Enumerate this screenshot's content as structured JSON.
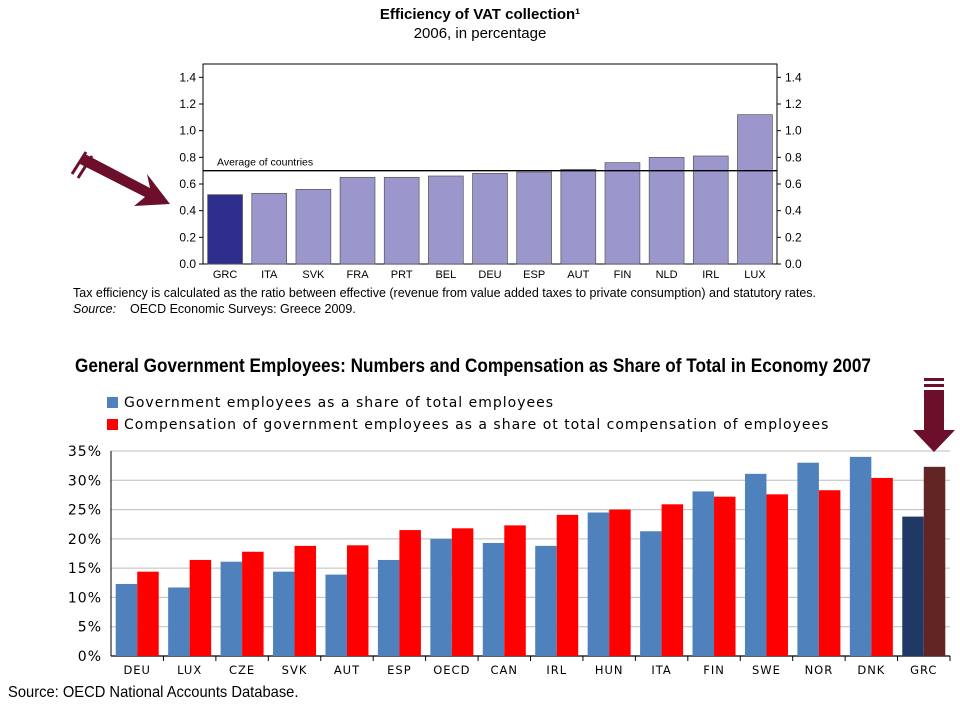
{
  "chart_data": [
    {
      "type": "bar",
      "title": "Efficiency of VAT collection¹",
      "subtitle": "2006, in percentage",
      "categories": [
        "GRC",
        "ITA",
        "SVK",
        "FRA",
        "PRT",
        "BEL",
        "DEU",
        "ESP",
        "AUT",
        "FIN",
        "NLD",
        "IRL",
        "LUX"
      ],
      "values": [
        0.52,
        0.53,
        0.56,
        0.65,
        0.65,
        0.66,
        0.68,
        0.69,
        0.71,
        0.76,
        0.8,
        0.81,
        1.12
      ],
      "highlight_index": 0,
      "reference_line": {
        "label": "Average of countries",
        "value": 0.7
      },
      "yticks": [
        "0.0",
        "0.2",
        "0.4",
        "0.6",
        "0.8",
        "1.0",
        "1.2",
        "1.4"
      ],
      "ylim": [
        0,
        1.5
      ],
      "grid": false,
      "colors": {
        "bar": "#9b97cc",
        "highlight": "#2e2e8f"
      }
    },
    {
      "type": "bar",
      "title": "General Government Employees: Numbers and Compensation as Share of Total in Economy 2007",
      "categories": [
        "DEU",
        "LUX",
        "CZE",
        "SVK",
        "AUT",
        "ESP",
        "OECD",
        "CAN",
        "IRL",
        "HUN",
        "ITA",
        "FIN",
        "SWE",
        "NOR",
        "DNK",
        "GRC"
      ],
      "series": [
        {
          "name": "Government employees as a share of total employees",
          "values": [
            12.3,
            11.7,
            16.1,
            14.4,
            13.9,
            16.4,
            20.0,
            19.3,
            18.8,
            24.5,
            21.3,
            28.1,
            31.1,
            33.0,
            34.0,
            23.8
          ],
          "color": "#4f81bd",
          "highlight_color": "#1f3864"
        },
        {
          "name": "Compensation of government employees as a share ot total compensation of employees",
          "values": [
            14.4,
            16.4,
            17.8,
            18.8,
            18.9,
            21.5,
            21.8,
            22.3,
            24.1,
            25.0,
            25.9,
            27.2,
            27.6,
            28.3,
            30.4,
            32.3
          ],
          "color": "#ff0000",
          "highlight_color": "#632523"
        }
      ],
      "highlight_category": "GRC",
      "yticks": [
        "0%",
        "5%",
        "10%",
        "15%",
        "20%",
        "25%",
        "30%",
        "35%"
      ],
      "ylim": [
        0,
        35
      ],
      "grid": true
    }
  ],
  "notes": {
    "footnote": "Tax efficiency is calculated as the ratio between effective (revenue from value added taxes to private consumption) and statutory rates.",
    "source_label": "Source:",
    "source_text": "OECD Economic Surveys: Greece 2009.",
    "bottom_source": "Source: OECD National Accounts Database."
  },
  "annotations": {
    "arrow_color": "#6b0f2a"
  }
}
